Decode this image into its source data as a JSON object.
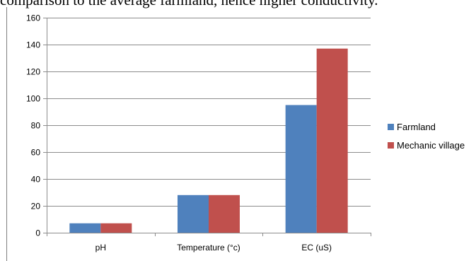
{
  "header_text": "comparison to the average farmland, hence higher conductivity.",
  "chart_data": {
    "type": "bar",
    "categories": [
      "pH",
      "Temperature (°c)",
      "EC (uS)"
    ],
    "series": [
      {
        "name": "Farmland",
        "values": [
          7,
          28,
          95
        ],
        "color": "#4f81bd"
      },
      {
        "name": "Mechanic village",
        "values": [
          7,
          28,
          137
        ],
        "color": "#c0504d"
      }
    ],
    "ylim": [
      0,
      160
    ],
    "yticks": [
      0,
      20,
      40,
      60,
      80,
      100,
      120,
      140,
      160
    ],
    "grid": true,
    "legend": "right",
    "title": "",
    "xlabel": "",
    "ylabel": ""
  }
}
